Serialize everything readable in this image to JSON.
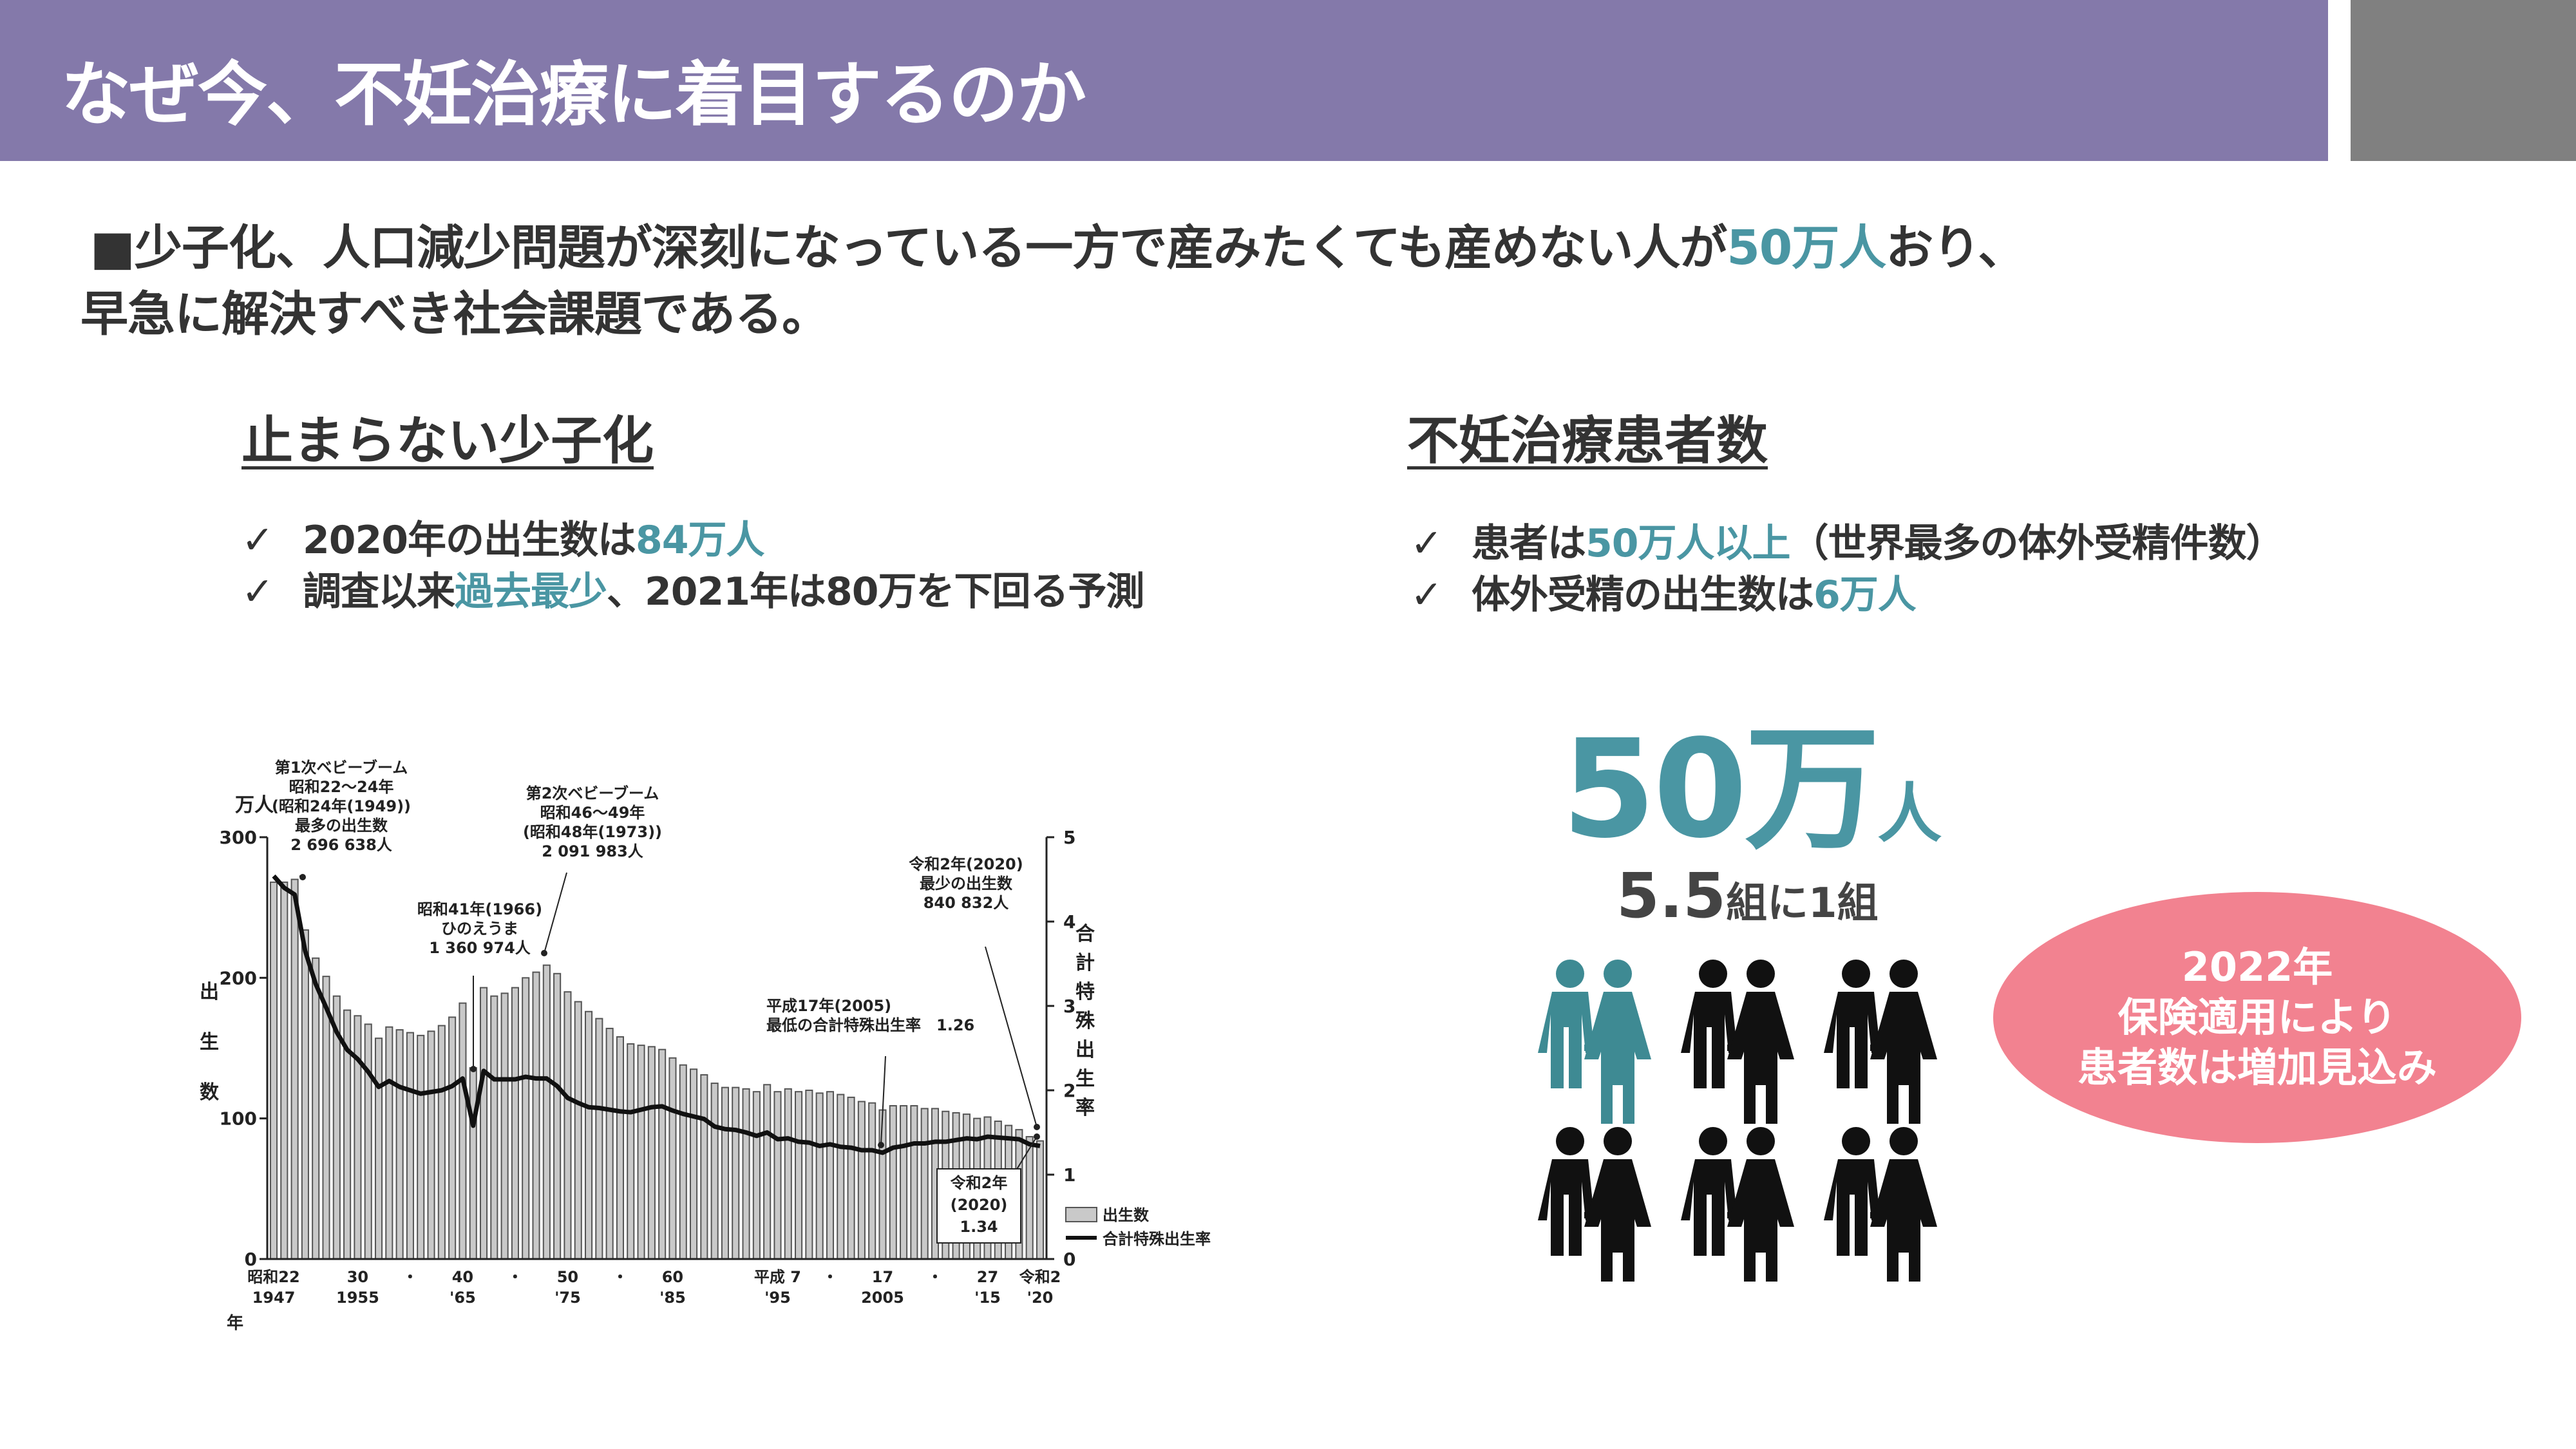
{
  "title": "なぜ今、不妊治療に着目するのか",
  "lead": {
    "marker": "■",
    "line1_pre": "少子化、人口減少問題が深刻になっている一方で産みたくても産めない人が",
    "line1_highlight": "50万人",
    "line1_post": "おり、",
    "line2": "早急に解決すべき社会課題である。"
  },
  "left": {
    "heading": "止まらない少子化",
    "check": "✓",
    "b1_pre": "2020年の出生数は",
    "b1_highlight": "84万人",
    "b2_pre": "調査以来",
    "b2_highlight": "過去最少",
    "b2_post": "、2021年は80万を下回る予測"
  },
  "right": {
    "heading": "不妊治療患者数",
    "check": "✓",
    "b1_pre": "患者は",
    "b1_highlight": "50万人以上",
    "b1_post": "（世界最多の体外受精件数）",
    "b2_pre": "体外受精の出生数は",
    "b2_highlight": "6万人",
    "big_number": "50万",
    "big_unit": "人",
    "ratio_number": "5.5",
    "ratio_text": "組に1組",
    "oval_line1": "2022年",
    "oval_line2": "保険適用により",
    "oval_line3": "患者数は増加見込み",
    "couples_highlighted": 1,
    "couples_total": 6,
    "highlight_color": "#3e8a93",
    "figure_color": "#111111"
  },
  "colors": {
    "title_bar": "#8479aa",
    "accent_teal": "#4a96a3",
    "oval_pink": "#f28290",
    "corner_gray": "#808080"
  },
  "chart_data": {
    "type": "bar",
    "y_unit_label": "万人",
    "y_left_label": [
      "出",
      "生",
      "数"
    ],
    "y_right_label": [
      "合",
      "計",
      "特",
      "殊",
      "出",
      "生",
      "率"
    ],
    "y_left_ticks": [
      "0",
      "100",
      "200",
      "300"
    ],
    "y_right_ticks": [
      "0",
      "1",
      "2",
      "3",
      "4",
      "5"
    ],
    "ylim_left": [
      0,
      300
    ],
    "ylim_right": [
      0,
      5
    ],
    "x_tick_labels": [
      {
        "top": "昭和22",
        "bottom": "1947",
        "year": 1947
      },
      {
        "top": "30",
        "bottom": "1955",
        "year": 1955
      },
      {
        "top": "・",
        "bottom": "",
        "year": 1960
      },
      {
        "top": "40",
        "bottom": "'65",
        "year": 1965
      },
      {
        "top": "・",
        "bottom": "",
        "year": 1970
      },
      {
        "top": "50",
        "bottom": "'75",
        "year": 1975
      },
      {
        "top": "・",
        "bottom": "",
        "year": 1980
      },
      {
        "top": "60",
        "bottom": "'85",
        "year": 1985
      },
      {
        "top": "平成 7",
        "bottom": "'95",
        "year": 1995
      },
      {
        "top": "・",
        "bottom": "",
        "year": 2000
      },
      {
        "top": "17",
        "bottom": "2005",
        "year": 2005
      },
      {
        "top": "・",
        "bottom": "",
        "year": 2010
      },
      {
        "top": "27",
        "bottom": "'15",
        "year": 2015
      },
      {
        "top": "令和2",
        "bottom": "'20",
        "year": 2020
      }
    ],
    "x_axis_suffix": "年",
    "years": [
      1947,
      1948,
      1949,
      1950,
      1951,
      1952,
      1953,
      1954,
      1955,
      1956,
      1957,
      1958,
      1959,
      1960,
      1961,
      1962,
      1963,
      1964,
      1965,
      1966,
      1967,
      1968,
      1969,
      1970,
      1971,
      1972,
      1973,
      1974,
      1975,
      1976,
      1977,
      1978,
      1979,
      1980,
      1981,
      1982,
      1983,
      1984,
      1985,
      1986,
      1987,
      1988,
      1989,
      1990,
      1991,
      1992,
      1993,
      1994,
      1995,
      1996,
      1997,
      1998,
      1999,
      2000,
      2001,
      2002,
      2003,
      2004,
      2005,
      2006,
      2007,
      2008,
      2009,
      2010,
      2011,
      2012,
      2013,
      2014,
      2015,
      2016,
      2017,
      2018,
      2019,
      2020
    ],
    "series": [
      {
        "name": "出生数",
        "kind": "bar",
        "axis": "left",
        "values": [
          268,
          268,
          270,
          234,
          214,
          201,
          187,
          177,
          173,
          167,
          157,
          165,
          163,
          161,
          159,
          162,
          166,
          172,
          182,
          136,
          193,
          187,
          189,
          193,
          200,
          204,
          209,
          203,
          190,
          183,
          176,
          171,
          164,
          158,
          153,
          152,
          151,
          149,
          143,
          138,
          135,
          131,
          125,
          122,
          122,
          121,
          119,
          124,
          119,
          121,
          119,
          120,
          118,
          119,
          117,
          115,
          112,
          111,
          106,
          109,
          109,
          109,
          107,
          107,
          105,
          104,
          103,
          100,
          101,
          98,
          95,
          92,
          87,
          84
        ]
      },
      {
        "name": "合計特殊出生率",
        "kind": "line",
        "axis": "right",
        "values": [
          4.54,
          4.4,
          4.32,
          3.65,
          3.26,
          2.98,
          2.69,
          2.48,
          2.37,
          2.22,
          2.04,
          2.11,
          2.04,
          2.0,
          1.96,
          1.98,
          2.0,
          2.05,
          2.14,
          1.58,
          2.23,
          2.13,
          2.13,
          2.13,
          2.16,
          2.14,
          2.14,
          2.05,
          1.91,
          1.85,
          1.8,
          1.79,
          1.77,
          1.75,
          1.74,
          1.77,
          1.8,
          1.81,
          1.76,
          1.72,
          1.69,
          1.66,
          1.57,
          1.54,
          1.53,
          1.5,
          1.46,
          1.5,
          1.42,
          1.43,
          1.39,
          1.38,
          1.34,
          1.36,
          1.33,
          1.32,
          1.29,
          1.29,
          1.26,
          1.32,
          1.34,
          1.37,
          1.37,
          1.39,
          1.39,
          1.41,
          1.43,
          1.42,
          1.45,
          1.44,
          1.43,
          1.42,
          1.36,
          1.34
        ]
      }
    ],
    "annotations": [
      {
        "lines": [
          "第1次ベビーブーム",
          "昭和22～24年",
          "(昭和24年(1949))",
          "最多の出生数",
          "2 696 638人"
        ],
        "year": 1949
      },
      {
        "lines": [
          "第2次ベビーブーム",
          "昭和46～49年",
          "(昭和48年(1973))",
          "2 091 983人"
        ],
        "year": 1973
      },
      {
        "lines": [
          "昭和41年(1966)",
          "ひのえうま",
          "1 360 974人"
        ],
        "year": 1966
      },
      {
        "lines": [
          "平成17年(2005)",
          "最低の合計特殊出生率　1.26"
        ],
        "year": 2005
      },
      {
        "lines": [
          "令和2年(2020)",
          "最少の出生数",
          "840 832人"
        ],
        "year": 2020
      },
      {
        "lines": [
          "令和2年",
          "(2020)",
          "1.34"
        ],
        "year": 2020
      }
    ],
    "legend": [
      "出生数",
      "合計特殊出生率"
    ],
    "legend_position": "bottom-right"
  }
}
